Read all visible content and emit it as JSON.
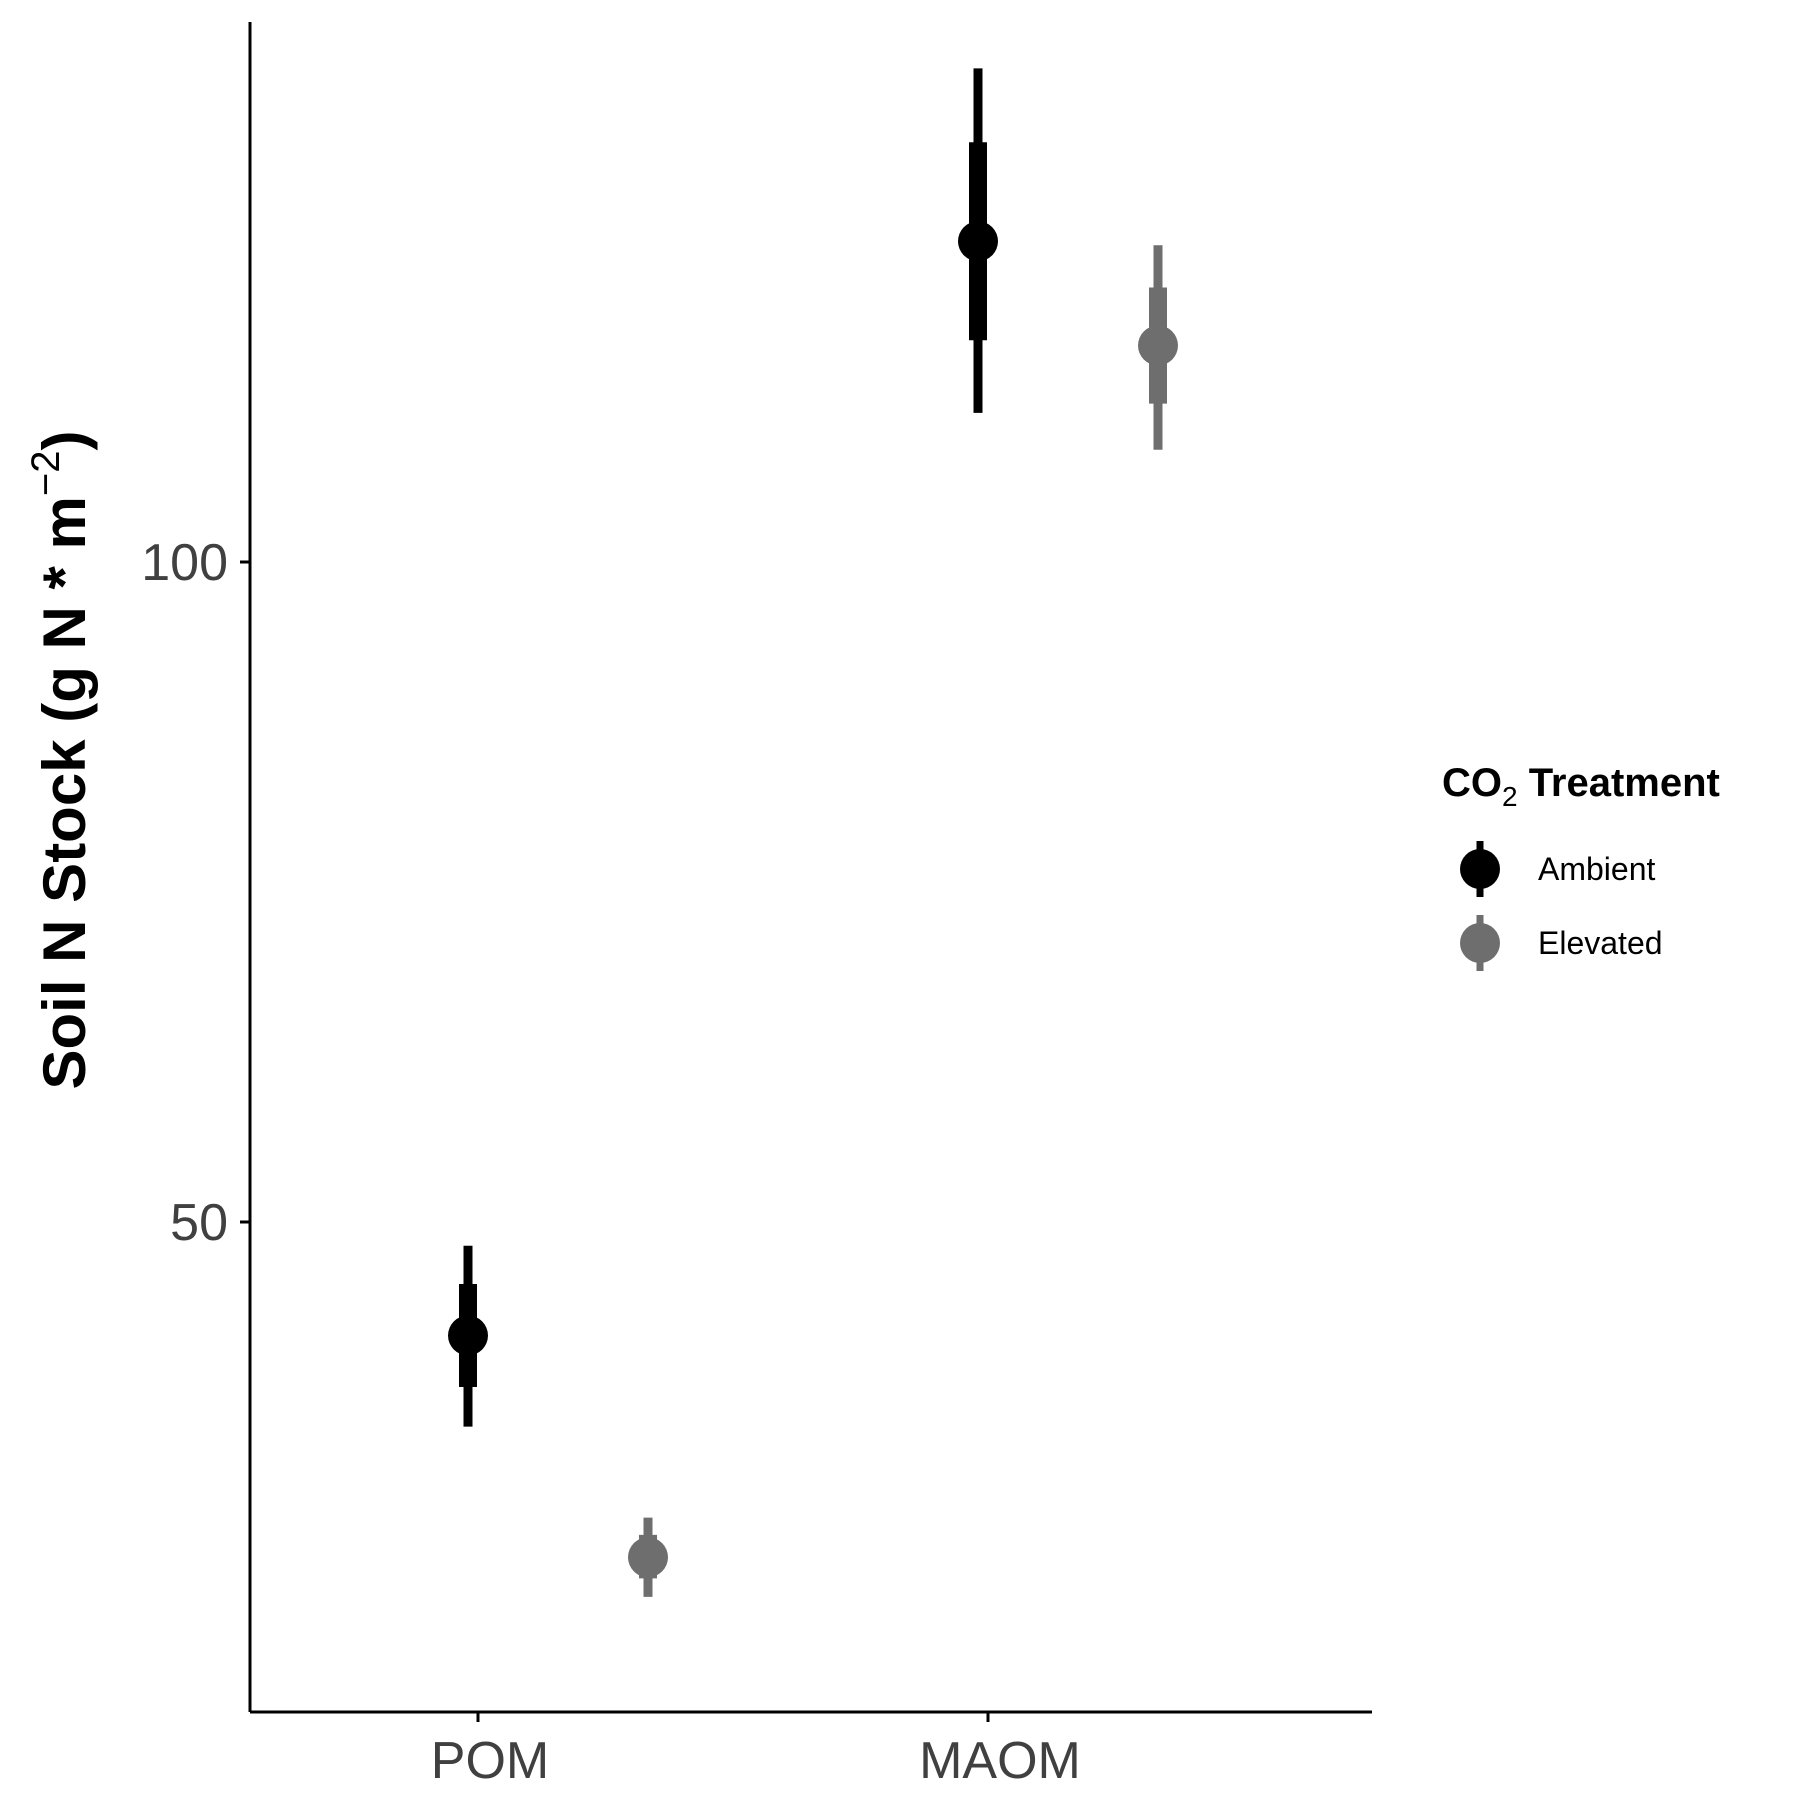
{
  "chart_data": {
    "type": "scatter",
    "subtype": "pointrange",
    "categories": [
      "POM",
      "MAOM"
    ],
    "xlabel": "",
    "ylabel": {
      "main": "Soil N Stock (g N * m",
      "superscript": "−2",
      "close": ")"
    },
    "y_ticks": [
      50,
      100
    ],
    "ylim": [
      21,
      121
    ],
    "grid": false,
    "legend": {
      "title_main": "CO",
      "title_sub": "2",
      "title_rest": " Treatment",
      "placement": "right"
    },
    "series": [
      {
        "name": "Ambient",
        "color": "#000000",
        "values": [
          {
            "category": "POM",
            "y": 41.4,
            "inner": [
              37.5,
              45.3
            ],
            "outer": [
              34.5,
              48.2
            ]
          },
          {
            "category": "MAOM",
            "y": 124.3,
            "inner": [
              116.8,
              131.8
            ],
            "outer": [
              111.3,
              137.4
            ]
          }
        ]
      },
      {
        "name": "Elevated",
        "color": "#6e6e6e",
        "values": [
          {
            "category": "POM",
            "y": 24.6,
            "inner": [
              23.0,
              26.3
            ],
            "outer": [
              21.6,
              27.6
            ]
          },
          {
            "category": "MAOM",
            "y": 116.4,
            "inner": [
              112.0,
              120.8
            ],
            "outer": [
              108.5,
              124.0
            ]
          }
        ]
      }
    ]
  }
}
